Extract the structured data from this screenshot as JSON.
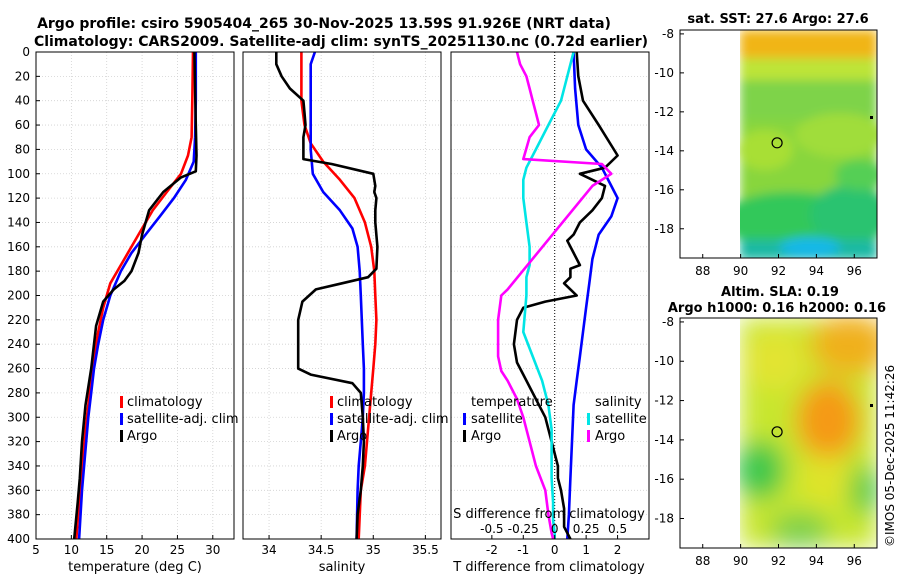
{
  "header": {
    "title_line1": "Argo profile: csiro 5905404_265 30-Nov-2025 13.59S 91.926E (NRT data)",
    "title_line2": "Climatology: CARS2009. Satellite-adj clim: synTS_20251130.nc (0.72d earlier)"
  },
  "colors": {
    "climatology": "#ff0000",
    "satellite": "#0000ff",
    "argo": "#000000",
    "sat_salinity": "#00e5e5",
    "argo_salinity": "#ff00ff",
    "grid": "#d0d0d0"
  },
  "chart_data": [
    {
      "name": "temperature-profile",
      "type": "line",
      "xlabel": "temperature (deg C)",
      "xlim": [
        5,
        33
      ],
      "xticks": [
        5,
        10,
        15,
        20,
        25,
        30
      ],
      "ylim": [
        0,
        400
      ],
      "yticks": [
        0,
        20,
        40,
        60,
        80,
        100,
        120,
        140,
        160,
        180,
        200,
        220,
        240,
        260,
        280,
        300,
        320,
        340,
        360,
        380,
        400
      ],
      "legend": [
        "climatology",
        "satellite-adj. clim",
        "Argo"
      ],
      "series": [
        {
          "name": "climatology",
          "color_key": "climatology",
          "x": [
            27.2,
            27.1,
            27.0,
            26.5,
            25.5,
            23.5,
            21.5,
            19.5,
            17.5,
            15.5,
            14.5,
            13.8,
            13.2,
            12.8,
            12.4,
            12.0,
            11.7,
            11.4,
            11.1,
            10.7
          ],
          "y": [
            0,
            40,
            70,
            85,
            100,
            115,
            130,
            150,
            170,
            190,
            210,
            230,
            250,
            270,
            290,
            310,
            330,
            350,
            370,
            400
          ]
        },
        {
          "name": "satellite-adj. clim",
          "color_key": "satellite",
          "x": [
            27.6,
            27.6,
            27.5,
            27.3,
            26.2,
            24.5,
            22.5,
            20.5,
            18.5,
            17.0,
            15.5,
            14.5,
            13.8,
            13.2,
            12.8,
            12.4,
            12.1,
            11.8,
            11.5,
            11.1
          ],
          "y": [
            0,
            40,
            70,
            90,
            105,
            120,
            135,
            150,
            165,
            180,
            200,
            220,
            240,
            260,
            280,
            300,
            320,
            340,
            360,
            400
          ]
        },
        {
          "name": "Argo",
          "color_key": "argo",
          "x": [
            27.4,
            27.5,
            27.6,
            27.7,
            27.6,
            25.5,
            23.0,
            21.0,
            20.0,
            19.5,
            18.5,
            17.5,
            16.0,
            14.5,
            13.5,
            12.8,
            12.0,
            11.5,
            11.2,
            10.9,
            10.4
          ],
          "y": [
            0,
            30,
            60,
            85,
            98,
            103,
            115,
            130,
            150,
            165,
            180,
            188,
            195,
            205,
            225,
            260,
            290,
            320,
            350,
            370,
            400
          ]
        }
      ]
    },
    {
      "name": "salinity-profile",
      "type": "line",
      "xlabel": "salinity",
      "xlim": [
        33.75,
        35.65
      ],
      "xticks": [
        34,
        34.5,
        35,
        35.5
      ],
      "xticklabels": [
        "34",
        "34.5",
        "35",
        "35.5"
      ],
      "ylim": [
        0,
        400
      ],
      "legend": [
        "climatology",
        "satellite-adj. clim",
        "Argo"
      ],
      "series": [
        {
          "name": "climatology",
          "color_key": "climatology",
          "x": [
            34.31,
            34.31,
            34.34,
            34.4,
            34.52,
            34.68,
            34.82,
            34.92,
            34.98,
            35.01,
            35.02,
            35.03,
            35.02,
            35.0,
            34.98,
            34.96,
            34.94,
            34.92,
            34.88,
            34.86
          ],
          "y": [
            0,
            40,
            60,
            75,
            90,
            105,
            120,
            140,
            160,
            180,
            200,
            220,
            240,
            260,
            280,
            300,
            320,
            340,
            360,
            400
          ]
        },
        {
          "name": "satellite-adj. clim",
          "color_key": "satellite",
          "x": [
            34.44,
            34.4,
            34.4,
            34.4,
            34.42,
            34.52,
            34.68,
            34.8,
            34.85,
            34.87,
            34.88,
            34.89,
            34.9,
            34.91,
            34.91,
            34.9,
            34.88,
            34.86,
            34.85,
            34.84
          ],
          "y": [
            0,
            10,
            40,
            80,
            100,
            115,
            130,
            145,
            160,
            180,
            200,
            220,
            240,
            260,
            280,
            300,
            320,
            340,
            360,
            400
          ]
        },
        {
          "name": "Argo",
          "color_key": "argo",
          "x": [
            34.07,
            34.07,
            34.12,
            34.2,
            34.33,
            34.34,
            34.35,
            34.33,
            34.33,
            34.6,
            35.0,
            35.02,
            35.01,
            35.03,
            35.02,
            35.02,
            35.04,
            35.03,
            34.95,
            34.7,
            34.45,
            34.32,
            34.28,
            34.28,
            34.4,
            34.8,
            34.88,
            34.9,
            34.91,
            34.9,
            34.88,
            34.85,
            34.84
          ],
          "y": [
            0,
            10,
            20,
            30,
            40,
            50,
            60,
            70,
            88,
            92,
            100,
            110,
            115,
            120,
            130,
            140,
            160,
            178,
            185,
            190,
            195,
            205,
            220,
            260,
            265,
            272,
            280,
            300,
            320,
            340,
            360,
            380,
            400
          ]
        }
      ]
    },
    {
      "name": "difference-profile",
      "type": "line",
      "xlabel": "T difference from climatology",
      "xlabel_top": "S difference from climatology",
      "xlim": [
        -3.3,
        3.0
      ],
      "xticks": [
        -2,
        -1,
        0,
        1,
        2
      ],
      "xticks_top": [
        -0.5,
        -0.25,
        0,
        0.25,
        0.5
      ],
      "xticklabels_top": [
        "-0.5",
        "-0.25",
        "0",
        "0.25",
        "0.5"
      ],
      "s_scale": 4,
      "ylim": [
        0,
        400
      ],
      "legend_temperature": [
        "temperature",
        "satellite",
        "Argo"
      ],
      "legend_salinity": [
        "salinity",
        "satellite",
        "Argo"
      ],
      "series": [
        {
          "name": "temperature satellite",
          "color_key": "satellite",
          "x": [
            0.6,
            0.65,
            0.75,
            1.0,
            1.5,
            1.8,
            2.0,
            1.8,
            1.4,
            1.2,
            1.1,
            1.0,
            0.9,
            0.8,
            0.7,
            0.6,
            0.55,
            0.5,
            0.45,
            0.4
          ],
          "y": [
            0,
            30,
            60,
            80,
            95,
            110,
            120,
            135,
            150,
            170,
            190,
            210,
            230,
            250,
            270,
            290,
            320,
            350,
            380,
            400
          ]
        },
        {
          "name": "temperature Argo",
          "color_key": "argo",
          "x": [
            0.7,
            0.75,
            0.9,
            1.4,
            2.0,
            1.6,
            0.8,
            1.2,
            1.6,
            1.5,
            1.2,
            0.8,
            0.6,
            0.4,
            0.6,
            0.8,
            0.5,
            0.5,
            0.3,
            0.5,
            0.7,
            -0.3,
            -1.0,
            -1.2,
            -1.3,
            -1.2,
            -1.0,
            -0.7,
            -0.3,
            -0.1,
            0.1,
            0.1,
            0.2,
            0.3,
            0.3,
            0.5
          ],
          "y": [
            0,
            20,
            40,
            60,
            85,
            95,
            100,
            105,
            110,
            120,
            130,
            140,
            150,
            155,
            165,
            175,
            178,
            185,
            190,
            195,
            200,
            205,
            210,
            220,
            240,
            255,
            265,
            280,
            300,
            320,
            340,
            350,
            360,
            375,
            390,
            400
          ]
        },
        {
          "name": "salinity satellite",
          "color_key": "sat_salinity",
          "x": [
            0.6,
            0.4,
            0.2,
            -0.2,
            -0.6,
            -0.9,
            -1.0,
            -1.0,
            -0.9,
            -0.8,
            -0.8,
            -0.9,
            -0.9,
            -1.0,
            -0.7,
            -0.4,
            -0.2,
            -0.1,
            -0.1,
            -0.1,
            -0.05,
            -0.05,
            0.0,
            0.0
          ],
          "y": [
            0,
            20,
            40,
            60,
            80,
            95,
            105,
            120,
            140,
            160,
            175,
            185,
            200,
            230,
            250,
            270,
            290,
            310,
            330,
            350,
            370,
            385,
            395,
            400
          ]
        },
        {
          "name": "salinity Argo",
          "color_key": "argo_salinity",
          "x": [
            -1.2,
            -1.1,
            -0.9,
            -0.8,
            -0.7,
            -0.6,
            -0.5,
            -0.8,
            -1.0,
            1.5,
            1.8,
            1.2,
            -1.5,
            -1.7,
            -1.8,
            -1.8,
            -1.7,
            -1.5,
            -1.2,
            -1.0,
            -0.8,
            -0.6,
            -0.3,
            -0.2,
            -0.1,
            -0.05
          ],
          "y": [
            0,
            10,
            20,
            30,
            40,
            50,
            60,
            70,
            88,
            92,
            100,
            110,
            195,
            200,
            220,
            250,
            262,
            270,
            285,
            300,
            320,
            340,
            360,
            380,
            395,
            400
          ]
        }
      ]
    }
  ],
  "maps": {
    "sst": {
      "title": "sat. SST: 27.6 Argo: 27.6",
      "xticks": [
        88,
        90,
        92,
        94,
        96
      ],
      "yticks": [
        -8,
        -10,
        -12,
        -14,
        -16,
        -18
      ],
      "xlim": [
        86.8,
        97.2
      ],
      "ylim": [
        -19.5,
        -7.8
      ],
      "data_lon": [
        90,
        97
      ],
      "marker": {
        "lon": 91.926,
        "lat": -13.59
      }
    },
    "sla": {
      "title1": "Altim. SLA: 0.19",
      "title2": "Argo h1000: 0.16 h2000: 0.16",
      "xticks": [
        88,
        90,
        92,
        94,
        96
      ],
      "yticks": [
        -8,
        -10,
        -12,
        -14,
        -16,
        -18
      ],
      "xlim": [
        86.8,
        97.2
      ],
      "ylim": [
        -19.5,
        -7.8
      ],
      "data_lon": [
        90,
        97
      ],
      "marker": {
        "lon": 91.926,
        "lat": -13.59
      }
    }
  },
  "footer": {
    "stamp": "©IMOS 05-Dec-2025 11:42:26"
  }
}
